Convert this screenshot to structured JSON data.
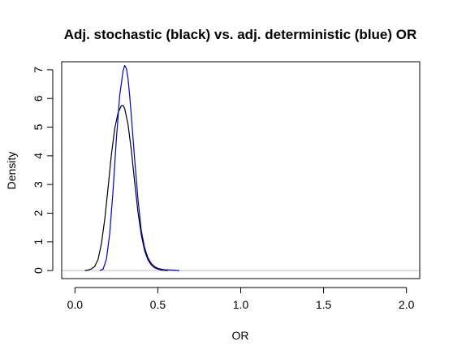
{
  "chart_data": {
    "type": "line",
    "title": "Adj. stochastic (black) vs. adj. deterministic (blue) OR",
    "xlabel": "OR",
    "ylabel": "Density",
    "xlim": [
      -0.08,
      2.08
    ],
    "ylim": [
      -0.28,
      7.28
    ],
    "x_ticks": [
      0.0,
      0.5,
      1.0,
      1.5,
      2.0
    ],
    "x_tick_labels": [
      "0.0",
      "0.5",
      "1.0",
      "1.5",
      "2.0"
    ],
    "y_ticks": [
      0,
      1,
      2,
      3,
      4,
      5,
      6,
      7
    ],
    "y_tick_labels": [
      "0",
      "1",
      "2",
      "3",
      "4",
      "5",
      "6",
      "7"
    ],
    "grid": false,
    "legend": "none",
    "reference_line": {
      "y": 0,
      "color": "#bebebe"
    },
    "series": [
      {
        "color": "#000000",
        "x": [
          0.06,
          0.08,
          0.1,
          0.12,
          0.14,
          0.16,
          0.18,
          0.2,
          0.22,
          0.24,
          0.26,
          0.28,
          0.29,
          0.3,
          0.32,
          0.34,
          0.36,
          0.38,
          0.4,
          0.42,
          0.44,
          0.46,
          0.48,
          0.5,
          0.52,
          0.54,
          0.56
        ],
        "y": [
          0.0,
          0.02,
          0.06,
          0.15,
          0.4,
          0.95,
          1.8,
          2.9,
          4.05,
          4.95,
          5.5,
          5.75,
          5.76,
          5.65,
          5.1,
          4.2,
          3.1,
          2.05,
          1.25,
          0.7,
          0.38,
          0.2,
          0.1,
          0.05,
          0.02,
          0.01,
          0.0
        ]
      },
      {
        "color": "#0000cc",
        "x": [
          0.15,
          0.17,
          0.19,
          0.21,
          0.23,
          0.25,
          0.27,
          0.29,
          0.3,
          0.31,
          0.32,
          0.33,
          0.34,
          0.36,
          0.38,
          0.4,
          0.42,
          0.44,
          0.46,
          0.48,
          0.5,
          0.52,
          0.54,
          0.57,
          0.6,
          0.63
        ],
        "y": [
          0.0,
          0.05,
          0.4,
          1.3,
          2.8,
          4.6,
          6.1,
          6.95,
          7.15,
          7.05,
          6.7,
          6.1,
          5.4,
          3.9,
          2.5,
          1.4,
          0.8,
          0.45,
          0.25,
          0.14,
          0.08,
          0.05,
          0.03,
          0.02,
          0.01,
          0.0
        ]
      }
    ]
  }
}
